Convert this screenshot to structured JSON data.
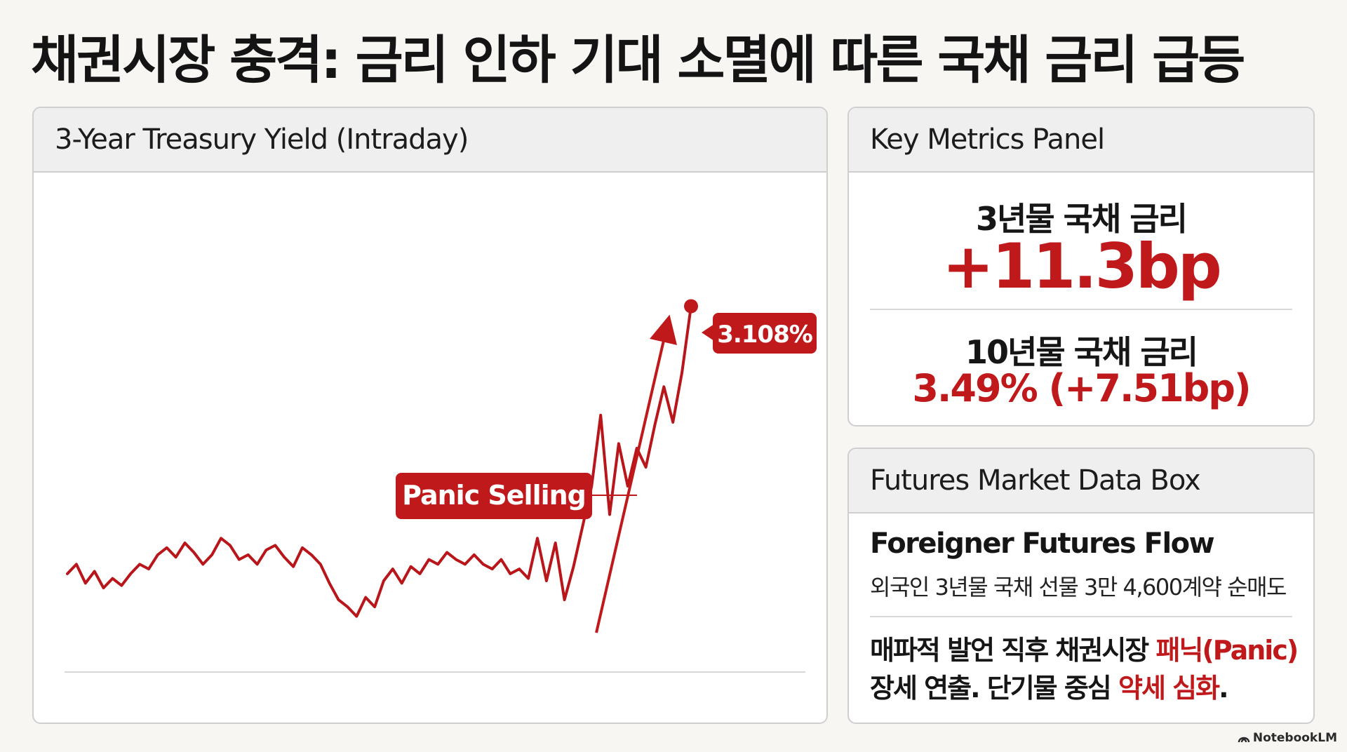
{
  "title": "채권시장 충격: 금리 인하 기대 소멸에 따른 국채 금리 급등",
  "chart_panel": {
    "header": "3-Year Treasury Yield (Intraday)"
  },
  "chart_data": {
    "type": "line",
    "title": "3-Year Treasury Yield (Intraday)",
    "series": [
      {
        "values": [
          2.995,
          2.999,
          2.991,
          2.996,
          2.989,
          2.993,
          2.99,
          2.995,
          2.999,
          2.997,
          3.003,
          3.006,
          3.002,
          3.008,
          3.004,
          2.999,
          3.003,
          3.01,
          3.007,
          3.001,
          3.003,
          2.999,
          3.005,
          3.007,
          3.002,
          2.998,
          3.006,
          3.003,
          2.999,
          2.991,
          2.984,
          2.981,
          2.977,
          2.985,
          2.981,
          2.992,
          2.997,
          2.991,
          2.998,
          2.995,
          3.001,
          2.999,
          3.004,
          3.001,
          2.999,
          3.003,
          2.999,
          2.997,
          3.001,
          2.995,
          2.997,
          2.993,
          3.01,
          2.992,
          3.008,
          2.984,
          2.998,
          3.015,
          3.032,
          3.062,
          3.02,
          3.05,
          3.032,
          3.048,
          3.04,
          3.058,
          3.074,
          3.059,
          3.08,
          3.108
        ]
      }
    ],
    "end_value_label": "3.108%",
    "annotation": "Panic Selling",
    "grid": false,
    "legend": "none"
  },
  "metrics_panel": {
    "header": "Key Metrics Panel",
    "metric1_label": "3년물 국채 금리",
    "metric1_value": "+11.3bp",
    "metric2_label": "10년물 국채 금리",
    "metric2_value": "3.49% (+7.51bp)"
  },
  "futures_panel": {
    "header": "Futures Market Data Box",
    "flow_heading": "Foreigner Futures Flow",
    "flow_detail": "외국인 3년물 국채 선물 3만 4,600계약 순매도",
    "note_line1_part1": "매파적 발언 직후 채권시장 ",
    "note_line1_highlight": "패닉(Panic)",
    "note_line2_part1": "장세 연출. 단기물 중심 ",
    "note_line2_highlight": "약세 심화",
    "note_line2_part2": "."
  },
  "brand": "NotebookLM",
  "colors": {
    "accent_red": "#c0191c",
    "line_red": "#b8161a"
  }
}
